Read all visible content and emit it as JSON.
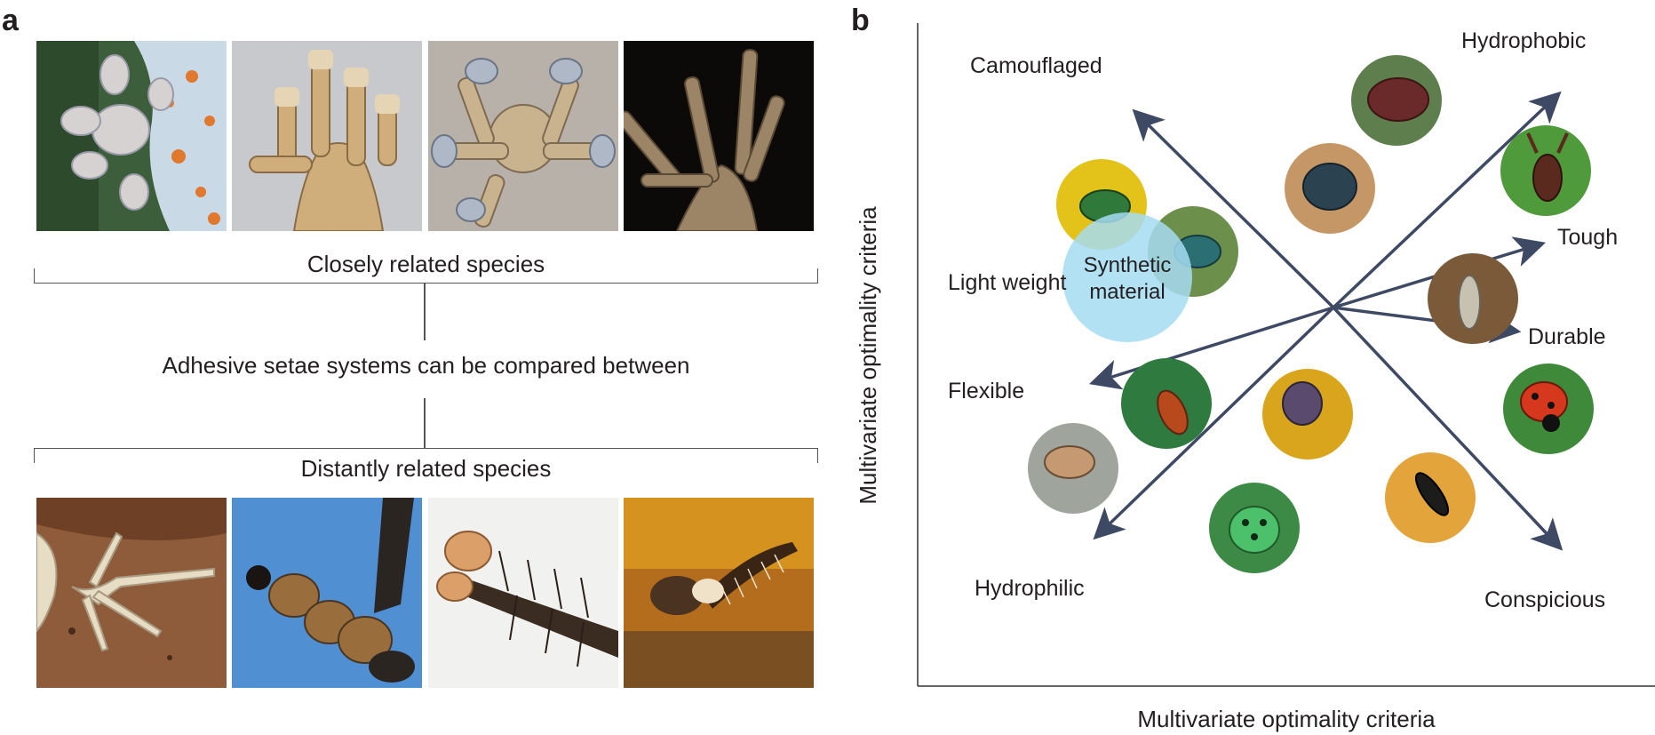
{
  "panel_a": {
    "letter": "a",
    "closely_related_label": "Closely related species",
    "middle_label": "Adhesive setae systems can be compared between",
    "distantly_related_label": "Distantly related species",
    "top_photos": [
      "gecko-foot-orange-spotted-photo",
      "gecko-foot-grey-photo",
      "gecko-foot-blue-photo",
      "gecko-foot-dark-background-photo"
    ],
    "bottom_photos": [
      "lizard-foot-on-rock-photo",
      "insect-tarsus-blue-sky-photo",
      "beetle-leg-white-background-photo",
      "insect-leg-amber-photo"
    ]
  },
  "panel_b": {
    "letter": "b",
    "y_axis_label": "Multivariate optimality criteria",
    "x_axis_label": "Multivariate optimality criteria",
    "criteria": {
      "camouflaged": "Camouflaged",
      "hydrophobic": "Hydrophobic",
      "tough": "Tough",
      "light_weight": "Light weight",
      "durable": "Durable",
      "flexible": "Flexible",
      "hydrophilic": "Hydrophilic",
      "conspicious": "Conspicious"
    },
    "center_label_line1": "Synthetic",
    "center_label_line2": "material",
    "colors": {
      "arrow": "#3e4a63",
      "synthetic_circle": "#a6dcf2"
    }
  }
}
